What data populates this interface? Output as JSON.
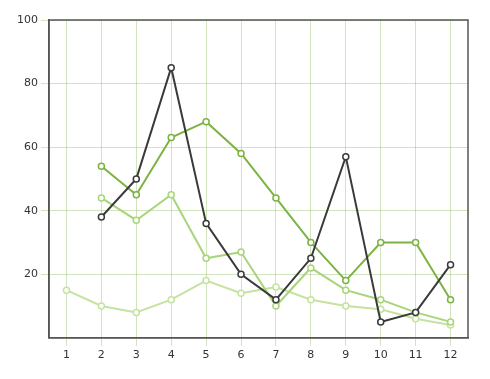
{
  "chart_data": {
    "type": "line",
    "x": [
      1,
      2,
      3,
      4,
      5,
      6,
      7,
      8,
      9,
      10,
      11,
      12
    ],
    "series": [
      {
        "color": "#3a3a3a",
        "marker": "circle",
        "values": [
          null,
          38,
          50,
          85,
          36,
          20,
          12,
          25,
          57,
          5,
          8,
          23
        ]
      },
      {
        "color": "#7cb342",
        "marker": "circle",
        "values": [
          null,
          54,
          45,
          63,
          68,
          58,
          44,
          30,
          18,
          30,
          30,
          12
        ]
      },
      {
        "color": "#a8d47a",
        "marker": "circle",
        "values": [
          null,
          44,
          37,
          45,
          25,
          27,
          10,
          22,
          15,
          12,
          8,
          5
        ]
      },
      {
        "color": "#c5e3a0",
        "marker": "circle",
        "values": [
          15,
          10,
          8,
          12,
          18,
          14,
          16,
          12,
          10,
          9,
          6,
          4
        ]
      }
    ],
    "xlim": [
      0.5,
      12.5
    ],
    "xticks": [
      1,
      2,
      3,
      4,
      5,
      6,
      7,
      8,
      9,
      10,
      11,
      12
    ],
    "ylim": [
      0,
      100
    ],
    "yticks": [
      20,
      40,
      60,
      80,
      100
    ],
    "grid": true
  }
}
